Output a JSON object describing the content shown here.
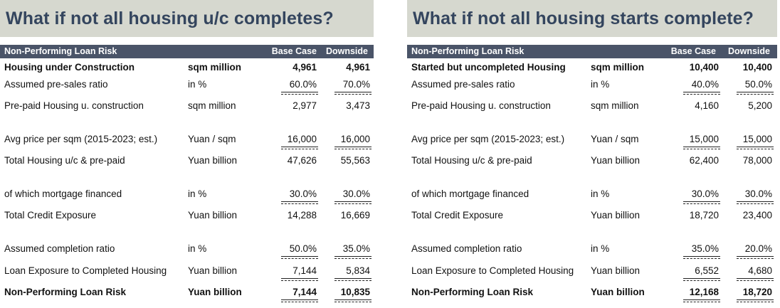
{
  "panels": [
    {
      "title": "What if not all housing u/c completes?",
      "header": {
        "label": "Non-Performing Loan Risk",
        "base": "Base Case",
        "down": "Downside"
      },
      "rows": [
        {
          "label": "Housing under Construction",
          "unit": "sqm million",
          "base": "4,961",
          "down": "4,961",
          "bold": true
        },
        {
          "label": "Assumed pre-sales ratio",
          "unit": "in %",
          "base": "60.0%",
          "down": "70.0%"
        },
        {
          "label": "Pre-paid Housing u. construction",
          "unit": "sqm million",
          "base": "2,977",
          "down": "3,473"
        },
        {
          "label": "Avg price per sqm (2015-2023; est.)",
          "unit": "Yuan / sqm",
          "base": "16,000",
          "down": "16,000"
        },
        {
          "label": "Total Housing u/c & pre-paid",
          "unit": "Yuan billion",
          "base": "47,626",
          "down": "55,563"
        },
        {
          "label": "of which mortgage financed",
          "unit": "in %",
          "base": "30.0%",
          "down": "30.0%"
        },
        {
          "label": "Total Credit Exposure",
          "unit": "Yuan billion",
          "base": "14,288",
          "down": "16,669"
        },
        {
          "label": "Assumed completion ratio",
          "unit": "in %",
          "base": "50.0%",
          "down": "35.0%"
        },
        {
          "label": "Loan Exposure to Completed Housing",
          "unit": "Yuan billion",
          "base": "7,144",
          "down": "5,834"
        },
        {
          "label": "Non-Performing Loan Risk",
          "unit": "Yuan billion",
          "base": "7,144",
          "down": "10,835",
          "bold": true
        }
      ]
    },
    {
      "title": "What if not all housing starts complete?",
      "header": {
        "label": "Non-Performing Loan Risk",
        "base": "Base Case",
        "down": "Downside"
      },
      "rows": [
        {
          "label": "Started but uncompleted Housing",
          "unit": "sqm million",
          "base": "10,400",
          "down": "10,400",
          "bold": true
        },
        {
          "label": "Assumed pre-sales ratio",
          "unit": "in %",
          "base": "40.0%",
          "down": "50.0%"
        },
        {
          "label": "Pre-paid Housing u. construction",
          "unit": "sqm million",
          "base": "4,160",
          "down": "5,200"
        },
        {
          "label": "Avg price per sqm (2015-2023; est.)",
          "unit": "Yuan / sqm",
          "base": "15,000",
          "down": "15,000"
        },
        {
          "label": "Total Housing u/c & pre-paid",
          "unit": "Yuan billion",
          "base": "62,400",
          "down": "78,000"
        },
        {
          "label": "of which mortgage financed",
          "unit": "in %",
          "base": "30.0%",
          "down": "30.0%"
        },
        {
          "label": "Total Credit Exposure",
          "unit": "Yuan billion",
          "base": "18,720",
          "down": "23,400"
        },
        {
          "label": "Assumed completion ratio",
          "unit": "in %",
          "base": "35.0%",
          "down": "20.0%"
        },
        {
          "label": "Loan Exposure to Completed Housing",
          "unit": "Yuan billion",
          "base": "6,552",
          "down": "4,680"
        },
        {
          "label": "Non-Performing Loan Risk",
          "unit": "Yuan billion",
          "base": "12,168",
          "down": "18,720",
          "bold": true
        }
      ]
    }
  ]
}
